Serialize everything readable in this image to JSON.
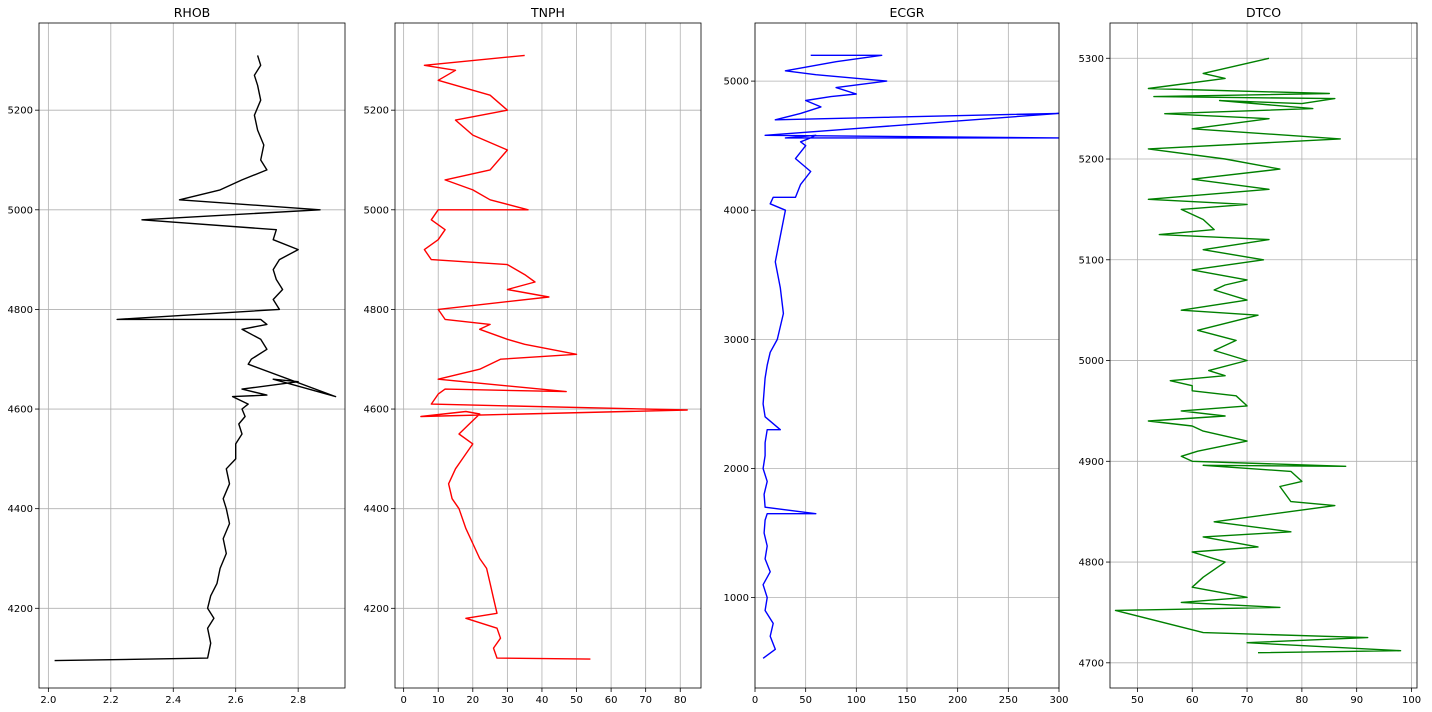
{
  "chart_data": [
    {
      "type": "line",
      "title": "RHOB",
      "xlim": [
        1.97,
        2.95
      ],
      "ylim": [
        4040,
        5375
      ],
      "xticks": [
        2.0,
        2.2,
        2.4,
        2.6,
        2.8
      ],
      "xtick_labels": [
        "2.0",
        "2.2",
        "2.4",
        "2.6",
        "2.8"
      ],
      "yticks": [
        4200,
        4400,
        4600,
        4800,
        5000,
        5200
      ],
      "ytick_labels": [
        "4200",
        "4400",
        "4600",
        "4800",
        "5000",
        "5200"
      ],
      "grid": true,
      "color": "#000000",
      "series": [
        {
          "x": [
            2.02,
            2.51,
            2.52,
            2.51,
            2.53,
            2.51,
            2.52,
            2.54,
            2.55,
            2.57,
            2.56,
            2.58,
            2.57,
            2.56,
            2.58,
            2.57,
            2.6,
            2.6,
            2.62,
            2.61,
            2.63,
            2.62,
            2.64,
            2.59,
            2.7,
            2.62,
            2.8,
            2.72,
            2.92,
            2.64,
            2.65,
            2.7,
            2.68,
            2.62,
            2.7,
            2.68,
            2.22,
            2.74,
            2.72,
            2.75,
            2.73,
            2.72,
            2.74,
            2.8,
            2.72,
            2.73,
            2.3,
            2.87,
            2.42,
            2.55,
            2.62,
            2.7,
            2.68,
            2.69,
            2.67,
            2.66,
            2.68,
            2.67,
            2.66,
            2.68,
            2.67
          ],
          "y": [
            4095,
            4100,
            4130,
            4160,
            4180,
            4200,
            4225,
            4250,
            4280,
            4310,
            4340,
            4370,
            4400,
            4420,
            4450,
            4480,
            4500,
            4530,
            4550,
            4570,
            4585,
            4600,
            4610,
            4625,
            4628,
            4640,
            4655,
            4660,
            4625,
            4690,
            4700,
            4720,
            4740,
            4760,
            4770,
            4780,
            4780,
            4800,
            4820,
            4840,
            4860,
            4880,
            4900,
            4920,
            4940,
            4960,
            4980,
            5000,
            5020,
            5040,
            5060,
            5080,
            5100,
            5130,
            5160,
            5190,
            5220,
            5250,
            5270,
            5290,
            5310
          ]
        }
      ]
    },
    {
      "type": "line",
      "title": "TNPH",
      "xlim": [
        -2.5,
        86
      ],
      "ylim": [
        4040,
        5375
      ],
      "xticks": [
        0,
        10,
        20,
        30,
        40,
        50,
        60,
        70,
        80
      ],
      "xtick_labels": [
        "0",
        "10",
        "20",
        "30",
        "40",
        "50",
        "60",
        "70",
        "80"
      ],
      "yticks": [
        4200,
        4400,
        4600,
        4800,
        5000,
        5200
      ],
      "ytick_labels": [
        "4200",
        "4400",
        "4600",
        "4800",
        "5000",
        "5200"
      ],
      "grid": true,
      "color": "#ff0000",
      "series": [
        {
          "x": [
            54,
            27,
            26,
            28,
            27,
            18,
            27,
            26,
            25,
            24,
            22,
            20,
            18,
            16,
            14,
            13,
            15,
            17,
            20,
            16,
            19,
            22,
            18,
            5,
            82,
            8,
            10,
            12,
            47,
            10,
            22,
            28,
            50,
            35,
            30,
            22,
            25,
            12,
            10,
            42,
            30,
            38,
            35,
            30,
            8,
            6,
            10,
            12,
            8,
            10,
            36,
            25,
            20,
            12,
            25,
            30,
            20,
            15,
            30,
            25,
            10,
            15,
            6,
            35
          ],
          "y": [
            4098,
            4100,
            4120,
            4140,
            4160,
            4180,
            4190,
            4220,
            4250,
            4280,
            4300,
            4330,
            4360,
            4400,
            4420,
            4450,
            4480,
            4500,
            4530,
            4550,
            4570,
            4590,
            4595,
            4585,
            4598,
            4610,
            4630,
            4640,
            4635,
            4660,
            4680,
            4700,
            4710,
            4730,
            4740,
            4760,
            4770,
            4780,
            4800,
            4825,
            4840,
            4855,
            4870,
            4890,
            4900,
            4920,
            4940,
            4960,
            4980,
            5000,
            5000,
            5020,
            5040,
            5060,
            5080,
            5120,
            5150,
            5180,
            5200,
            5230,
            5260,
            5280,
            5290,
            5310
          ]
        }
      ]
    },
    {
      "type": "line",
      "title": "ECGR",
      "xlim": [
        0,
        300
      ],
      "ylim": [
        300,
        5450
      ],
      "xticks": [
        0,
        50,
        100,
        150,
        200,
        250,
        300
      ],
      "xtick_labels": [
        "0",
        "50",
        "100",
        "150",
        "200",
        "250",
        "300"
      ],
      "yticks": [
        1000,
        2000,
        3000,
        4000,
        5000
      ],
      "ytick_labels": [
        "1000",
        "2000",
        "3000",
        "4000",
        "5000"
      ],
      "grid": true,
      "color": "#0000ff",
      "series": [
        {
          "x": [
            8,
            20,
            15,
            18,
            10,
            12,
            8,
            15,
            10,
            12,
            9,
            10,
            12,
            15,
            60,
            10,
            9,
            12,
            8,
            10,
            10,
            12,
            25,
            10,
            8,
            9,
            10,
            12,
            15,
            22,
            28,
            25,
            20,
            25,
            30,
            15,
            18,
            40,
            45,
            55,
            40,
            50,
            45,
            55,
            60,
            30,
            300,
            10,
            300,
            20,
            45,
            65,
            50,
            75,
            100,
            80,
            130,
            60,
            30,
            80,
            125,
            55
          ],
          "y": [
            530,
            600,
            700,
            800,
            900,
            1000,
            1100,
            1200,
            1300,
            1400,
            1500,
            1600,
            1650,
            1650,
            1650,
            1700,
            1800,
            1900,
            2000,
            2100,
            2200,
            2300,
            2300,
            2400,
            2500,
            2600,
            2700,
            2800,
            2900,
            3000,
            3200,
            3400,
            3600,
            3800,
            4000,
            4050,
            4100,
            4100,
            4200,
            4300,
            4400,
            4500,
            4530,
            4560,
            4580,
            4560,
            4560,
            4580,
            4750,
            4700,
            4750,
            4800,
            4850,
            4880,
            4900,
            4950,
            5000,
            5050,
            5080,
            5150,
            5200,
            5200
          ]
        }
      ]
    },
    {
      "type": "line",
      "title": "DTCO",
      "xlim": [
        45,
        101
      ],
      "ylim": [
        4675,
        5335
      ],
      "xticks": [
        50,
        60,
        70,
        80,
        90,
        100
      ],
      "xtick_labels": [
        "50",
        "60",
        "70",
        "80",
        "90",
        "100"
      ],
      "yticks": [
        4700,
        4800,
        4900,
        5000,
        5100,
        5200,
        5300
      ],
      "ytick_labels": [
        "4700",
        "4800",
        "4900",
        "5000",
        "5100",
        "5200",
        "5300"
      ],
      "grid": true,
      "color": "#008000",
      "series": [
        {
          "x": [
            72,
            98,
            70,
            92,
            62,
            46,
            76,
            58,
            70,
            60,
            62,
            66,
            60,
            72,
            62,
            78,
            64,
            86,
            78,
            76,
            80,
            78,
            62,
            88,
            60,
            58,
            61,
            70,
            62,
            60,
            52,
            66,
            58,
            70,
            68,
            60,
            60,
            56,
            66,
            63,
            70,
            64,
            68,
            61,
            72,
            58,
            70,
            64,
            66,
            70,
            60,
            73,
            62,
            74,
            54,
            64,
            62,
            58,
            70,
            52,
            74,
            60,
            76,
            66,
            52,
            87,
            60,
            74,
            55,
            82,
            65,
            80,
            86,
            53,
            85,
            52,
            66,
            62,
            74
          ],
          "y": [
            4710,
            4712,
            4720,
            4725,
            4730,
            4752,
            4755,
            4760,
            4765,
            4775,
            4785,
            4800,
            4810,
            4815,
            4825,
            4830,
            4840,
            4856,
            4860,
            4875,
            4880,
            4890,
            4896,
            4895,
            4900,
            4905,
            4910,
            4920,
            4930,
            4935,
            4940,
            4945,
            4950,
            4955,
            4965,
            4970,
            4975,
            4980,
            4985,
            4990,
            5000,
            5010,
            5020,
            5030,
            5045,
            5050,
            5060,
            5070,
            5075,
            5080,
            5090,
            5100,
            5110,
            5120,
            5125,
            5130,
            5140,
            5150,
            5155,
            5160,
            5170,
            5180,
            5190,
            5200,
            5210,
            5220,
            5230,
            5240,
            5245,
            5250,
            5258,
            5255,
            5260,
            5262,
            5265,
            5270,
            5280,
            5285,
            5300
          ]
        }
      ]
    }
  ]
}
